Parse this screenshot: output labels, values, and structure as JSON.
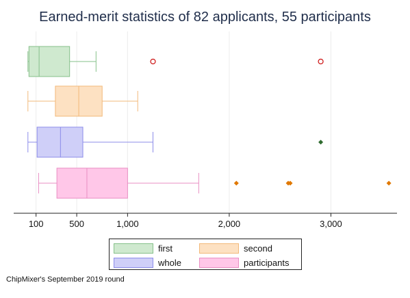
{
  "chart_data": {
    "type": "boxplot",
    "title": "Earned-merit statistics of 82 applicants, 55 participants",
    "caption": "ChipMixer's September 2019 round",
    "xlim": [
      -120,
      3650
    ],
    "xticks": [
      100,
      500,
      1000,
      2000,
      3000
    ],
    "xtick_labels": [
      "100",
      "500",
      "1,000",
      "2,000",
      "3,000"
    ],
    "legend_position": "bottom",
    "grid": "vertical",
    "series": [
      {
        "name": "first",
        "min": 20,
        "q1": 30,
        "median": 130,
        "q3": 430,
        "max": 690,
        "outliers": [
          1250,
          2900
        ],
        "outlier_style": "hollow-circle",
        "fill": "#cfe9cf",
        "stroke": "#86c08a",
        "outlier_color": "#cc1111"
      },
      {
        "name": "second",
        "min": 20,
        "q1": 290,
        "median": 520,
        "q3": 750,
        "max": 1100,
        "outliers": [],
        "fill": "#fde1c2",
        "stroke": "#f2b97a",
        "outlier_color": "#e08a00"
      },
      {
        "name": "whole",
        "min": 20,
        "q1": 110,
        "median": 340,
        "q3": 560,
        "max": 1250,
        "outliers": [
          2900
        ],
        "outlier_style": "dot",
        "fill": "#cfcff8",
        "stroke": "#8c8cea",
        "outlier_color": "#2f6b2f"
      },
      {
        "name": "participants",
        "min": 125,
        "q1": 305,
        "median": 600,
        "q3": 1000,
        "max": 1700,
        "outliers": [
          2070,
          2580,
          2600,
          3570
        ],
        "outlier_style": "dot",
        "fill": "#ffc7e8",
        "stroke": "#e98ec3",
        "outlier_color": "#e07800"
      }
    ]
  }
}
